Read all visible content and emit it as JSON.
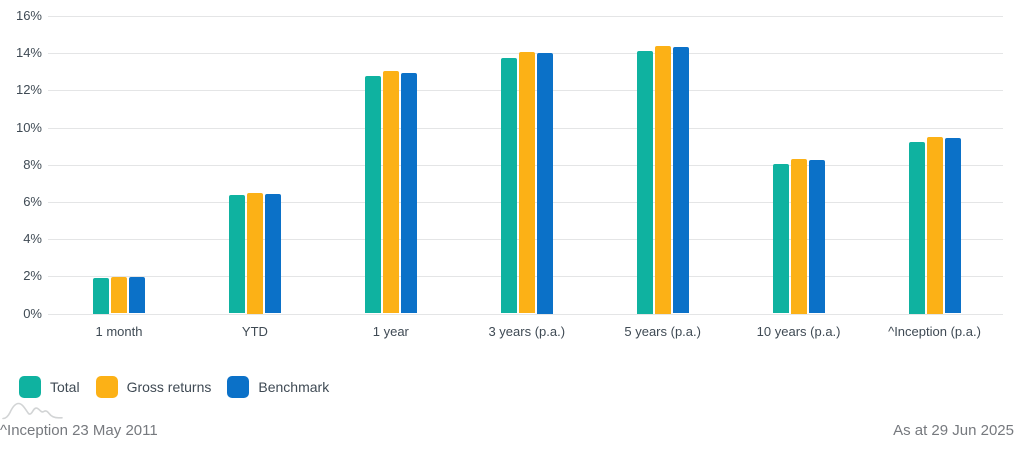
{
  "chart_data": {
    "type": "bar",
    "categories": [
      "1 month",
      "YTD",
      "1 year",
      "3 years (p.a.)",
      "5 years (p.a.)",
      "10 years (p.a.)",
      "^Inception (p.a.)"
    ],
    "series": [
      {
        "name": "Total",
        "color": "#0fb2a0",
        "values": [
          1.9,
          6.35,
          12.75,
          13.75,
          14.1,
          8.05,
          9.2
        ]
      },
      {
        "name": "Gross returns",
        "color": "#fcb116",
        "values": [
          1.95,
          6.5,
          13.05,
          14.05,
          14.4,
          8.3,
          9.5
        ]
      },
      {
        "name": "Benchmark",
        "color": "#0b71c8",
        "values": [
          1.95,
          6.45,
          12.95,
          14.0,
          14.35,
          8.25,
          9.45
        ]
      }
    ],
    "title": "",
    "xlabel": "",
    "ylabel": "",
    "ylim": [
      0,
      16
    ],
    "ytick_step": 2,
    "ytick_suffix": "%",
    "grid": "horizontal",
    "legend_position": "bottom-left"
  },
  "footer": {
    "inception_note": "^Inception 23 May 2011",
    "as_at": "As at 29 Jun 2025"
  },
  "colors": {
    "total": "#0fb2a0",
    "gross_returns": "#fcb116",
    "benchmark": "#0b71c8",
    "gridline": "#e4e5e6",
    "axis_text": "#3f4a54",
    "footer_text": "#76797e"
  }
}
